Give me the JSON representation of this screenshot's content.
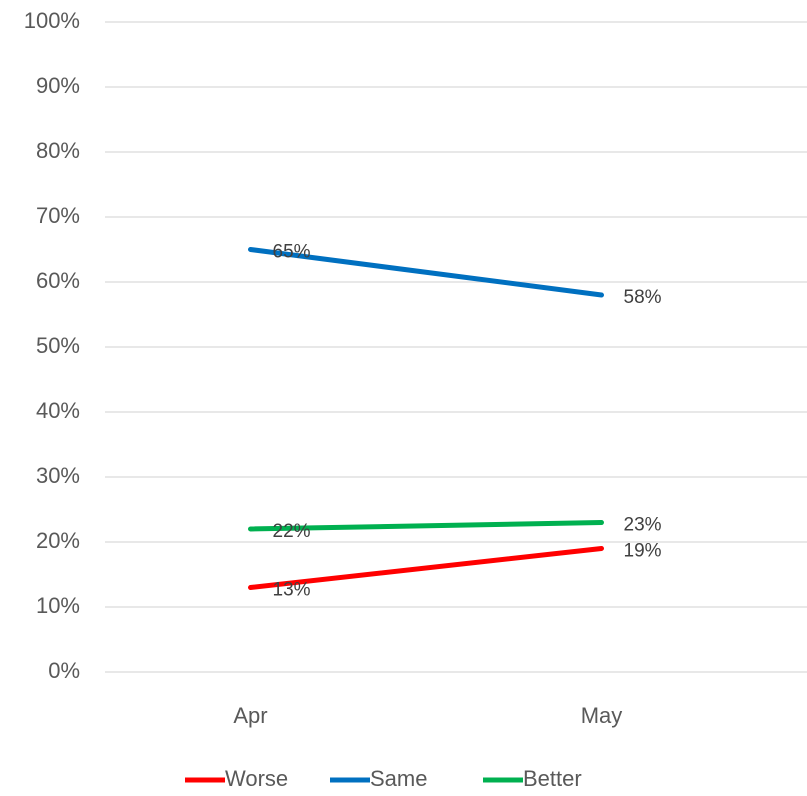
{
  "chart_data": {
    "type": "line",
    "categories": [
      "Apr",
      "May"
    ],
    "series": [
      {
        "name": "Worse",
        "color": "#ff0000",
        "values": [
          13,
          19
        ],
        "value_labels": [
          "13%",
          "19%"
        ]
      },
      {
        "name": "Same",
        "color": "#0070c0",
        "values": [
          65,
          58
        ],
        "value_labels": [
          "65%",
          "58%"
        ]
      },
      {
        "name": "Better",
        "color": "#00b050",
        "values": [
          22,
          23
        ],
        "value_labels": [
          "22%",
          "23%"
        ]
      }
    ],
    "ylim": [
      0,
      100
    ],
    "yticks": [
      {
        "value": 0,
        "label": "0%"
      },
      {
        "value": 10,
        "label": "10%"
      },
      {
        "value": 20,
        "label": "20%"
      },
      {
        "value": 30,
        "label": "30%"
      },
      {
        "value": 40,
        "label": "40%"
      },
      {
        "value": 50,
        "label": "50%"
      },
      {
        "value": 60,
        "label": "60%"
      },
      {
        "value": 70,
        "label": "70%"
      },
      {
        "value": 80,
        "label": "80%"
      },
      {
        "value": 90,
        "label": "90%"
      },
      {
        "value": 100,
        "label": "100%"
      }
    ],
    "grid": true,
    "legend": "bottom"
  }
}
